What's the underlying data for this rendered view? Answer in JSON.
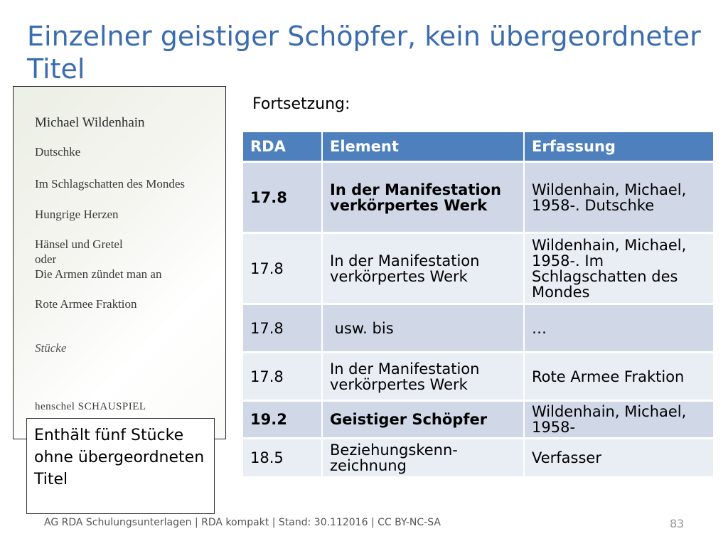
{
  "title": "Einzelner geistiger Schöpfer, kein übergeordneter Titel",
  "book_page": {
    "author": "Michael Wildenhain",
    "works": [
      "Dutschke",
      "Im Schlagschatten des Mondes",
      "Hungrige Herzen",
      "Hänsel und Gretel",
      "oder",
      "Die Armen zündet man an",
      "Rote Armee Fraktion"
    ],
    "genre": "Stücke",
    "publisher": "henschel SCHAUSPIEL"
  },
  "note": "Enthält fünf Stücke ohne übergeordneten Titel",
  "fortsetzung": "Fortsetzung:",
  "table": {
    "headers": [
      "RDA",
      "Element",
      "Erfassung"
    ],
    "rows": [
      [
        "17.8",
        "In der Manifestation verkörpertes Werk",
        "Wildenhain, Michael, 1958-. Dutschke"
      ],
      [
        "17.8",
        "In der Manifestation verkörpertes Werk",
        "Wildenhain, Michael, 1958-. Im Schlagschatten des Mondes"
      ],
      [
        "17.8",
        " usw. bis",
        "…"
      ],
      [
        "17.8",
        "In der Manifestation verkörpertes Werk",
        "Rote Armee Fraktion"
      ],
      [
        "19.2",
        "Geistiger Schöpfer",
        "Wildenhain, Michael, 1958-"
      ],
      [
        "18.5",
        "Beziehungskenn-zeichnung",
        "Verfasser"
      ]
    ]
  },
  "footer": "AG RDA Schulungsunterlagen | RDA kompakt | Stand:  30.112016 | CC BY-NC-SA",
  "page_number": "83",
  "colors": {
    "title": "#3b6caf",
    "header_bg": "#4e80bd",
    "row_dark": "#d0d8e8",
    "row_light": "#e9edf4"
  }
}
